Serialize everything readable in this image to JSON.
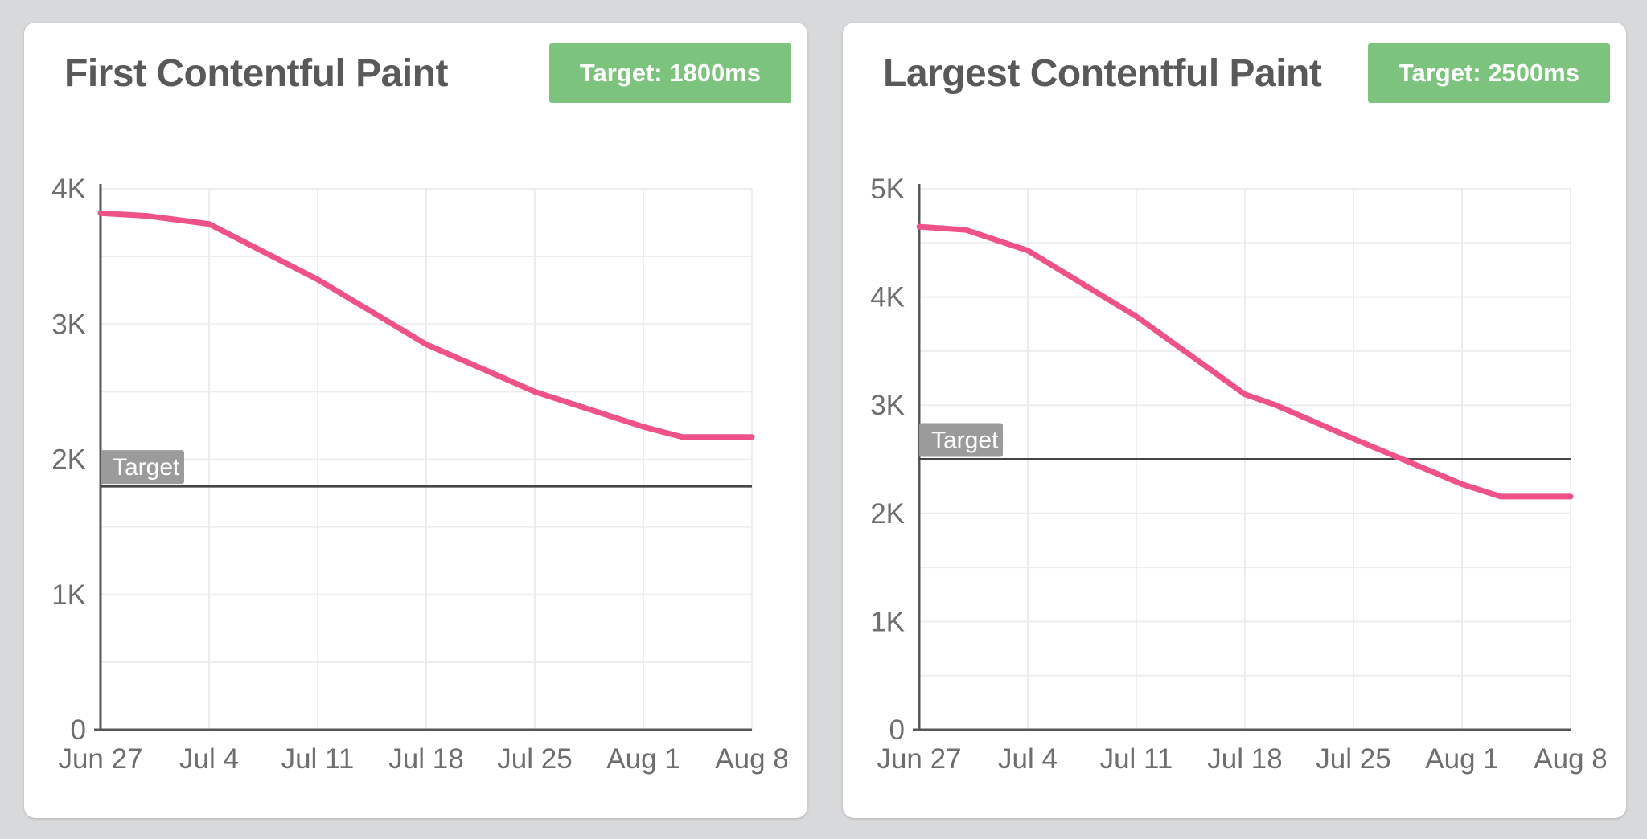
{
  "page": {
    "background": "#d8d9da"
  },
  "colors": {
    "card_bg": "#ffffff",
    "title_text": "#58595b",
    "badge_bg": "#7cc47e",
    "badge_text": "#ffffff",
    "line": "#ee5289",
    "grid": "#ededed",
    "axis": "#56575a",
    "tick_text": "#6d6e70",
    "target_line": "#454545",
    "target_annotation_bg": "#9b9b9b",
    "target_annotation_text": "#ffffff"
  },
  "chart_data": [
    {
      "type": "line",
      "title": "First Contentful Paint",
      "target_badge": "Target: 1800ms",
      "target_value": 1800,
      "target_line_label": "Target",
      "unit": "ms",
      "x_range": [
        0,
        42
      ],
      "x_tick_days": [
        0,
        7,
        14,
        21,
        28,
        35,
        42
      ],
      "x_tick_labels": [
        "Jun 27",
        "Jul 4",
        "Jul 11",
        "Jul 18",
        "Jul 25",
        "Aug 1",
        "Aug 8"
      ],
      "ylim": [
        0,
        4000
      ],
      "y_ticks": [
        0,
        1000,
        2000,
        3000,
        4000
      ],
      "y_tick_labels": [
        "0",
        "1K",
        "2K",
        "3K",
        "4K"
      ],
      "grid_step": 500,
      "grid": true,
      "legend": false,
      "series": [
        {
          "name": "First Contentful Paint (ms)",
          "points": [
            [
              0,
              3820
            ],
            [
              3,
              3800
            ],
            [
              7,
              3740
            ],
            [
              14,
              3330
            ],
            [
              21,
              2850
            ],
            [
              28,
              2500
            ],
            [
              35,
              2240
            ],
            [
              37.5,
              2165
            ],
            [
              42,
              2165
            ]
          ]
        }
      ]
    },
    {
      "type": "line",
      "title": "Largest Contentful Paint",
      "target_badge": "Target: 2500ms",
      "target_value": 2500,
      "target_line_label": "Target",
      "unit": "ms",
      "x_range": [
        0,
        42
      ],
      "x_tick_days": [
        0,
        7,
        14,
        21,
        28,
        35,
        42
      ],
      "x_tick_labels": [
        "Jun 27",
        "Jul 4",
        "Jul 11",
        "Jul 18",
        "Jul 25",
        "Aug 1",
        "Aug 8"
      ],
      "ylim": [
        0,
        5000
      ],
      "y_ticks": [
        0,
        1000,
        2000,
        3000,
        4000,
        5000
      ],
      "y_tick_labels": [
        "0",
        "1K",
        "2K",
        "3K",
        "4K",
        "5K"
      ],
      "grid_step": 500,
      "grid": true,
      "legend": false,
      "series": [
        {
          "name": "Largest Contentful Paint (ms)",
          "points": [
            [
              0,
              4650
            ],
            [
              3,
              4620
            ],
            [
              7,
              4430
            ],
            [
              14,
              3820
            ],
            [
              21,
              3100
            ],
            [
              23,
              3000
            ],
            [
              28,
              2690
            ],
            [
              35,
              2270
            ],
            [
              37.5,
              2155
            ],
            [
              42,
              2155
            ]
          ]
        }
      ]
    }
  ]
}
